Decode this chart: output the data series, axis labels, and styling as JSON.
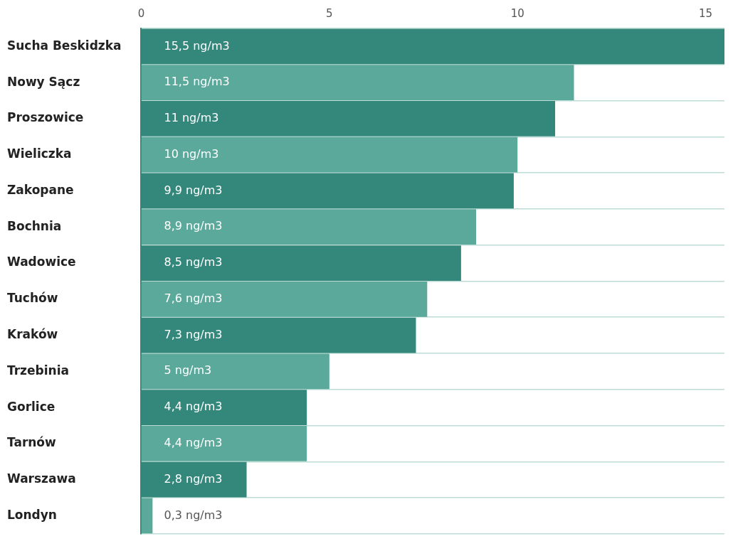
{
  "chart_data": {
    "type": "bar",
    "orientation": "horizontal",
    "categories": [
      "Sucha Beskidzka",
      "Nowy Sącz",
      "Proszowice",
      "Wieliczka",
      "Zakopane",
      "Bochnia",
      "Wadowice",
      "Tuchów",
      "Kraków",
      "Trzebinia",
      "Gorlice",
      "Tarnów",
      "Warszawa",
      "Londyn"
    ],
    "values": [
      15.5,
      11.5,
      11,
      10,
      9.9,
      8.9,
      8.5,
      7.6,
      7.3,
      5,
      4.4,
      4.4,
      2.8,
      0.3
    ],
    "colors": [
      "#34877b",
      "#5ba99b",
      "#34877b",
      "#5ba99b",
      "#34877b",
      "#5ba99b",
      "#34877b",
      "#5ba99b",
      "#34877b",
      "#5ba99b",
      "#34877b",
      "#5ba99b",
      "#34877b",
      "#5ba99b"
    ],
    "value_labels": [
      "15,5 ng/m3",
      "11,5 ng/m3",
      "11 ng/m3",
      "10 ng/m3",
      "9,9 ng/m3",
      "8,9 ng/m3",
      "8,5 ng/m3",
      "7,6 ng/m3",
      "7,3 ng/m3",
      "5 ng/m3",
      "4,4 ng/m3",
      "4,4 ng/m3",
      "2,8 ng/m3",
      "0,3 ng/m3"
    ],
    "xlim": [
      0,
      15.5
    ],
    "xticks": [
      0,
      5,
      10,
      15
    ],
    "grid": "y"
  }
}
